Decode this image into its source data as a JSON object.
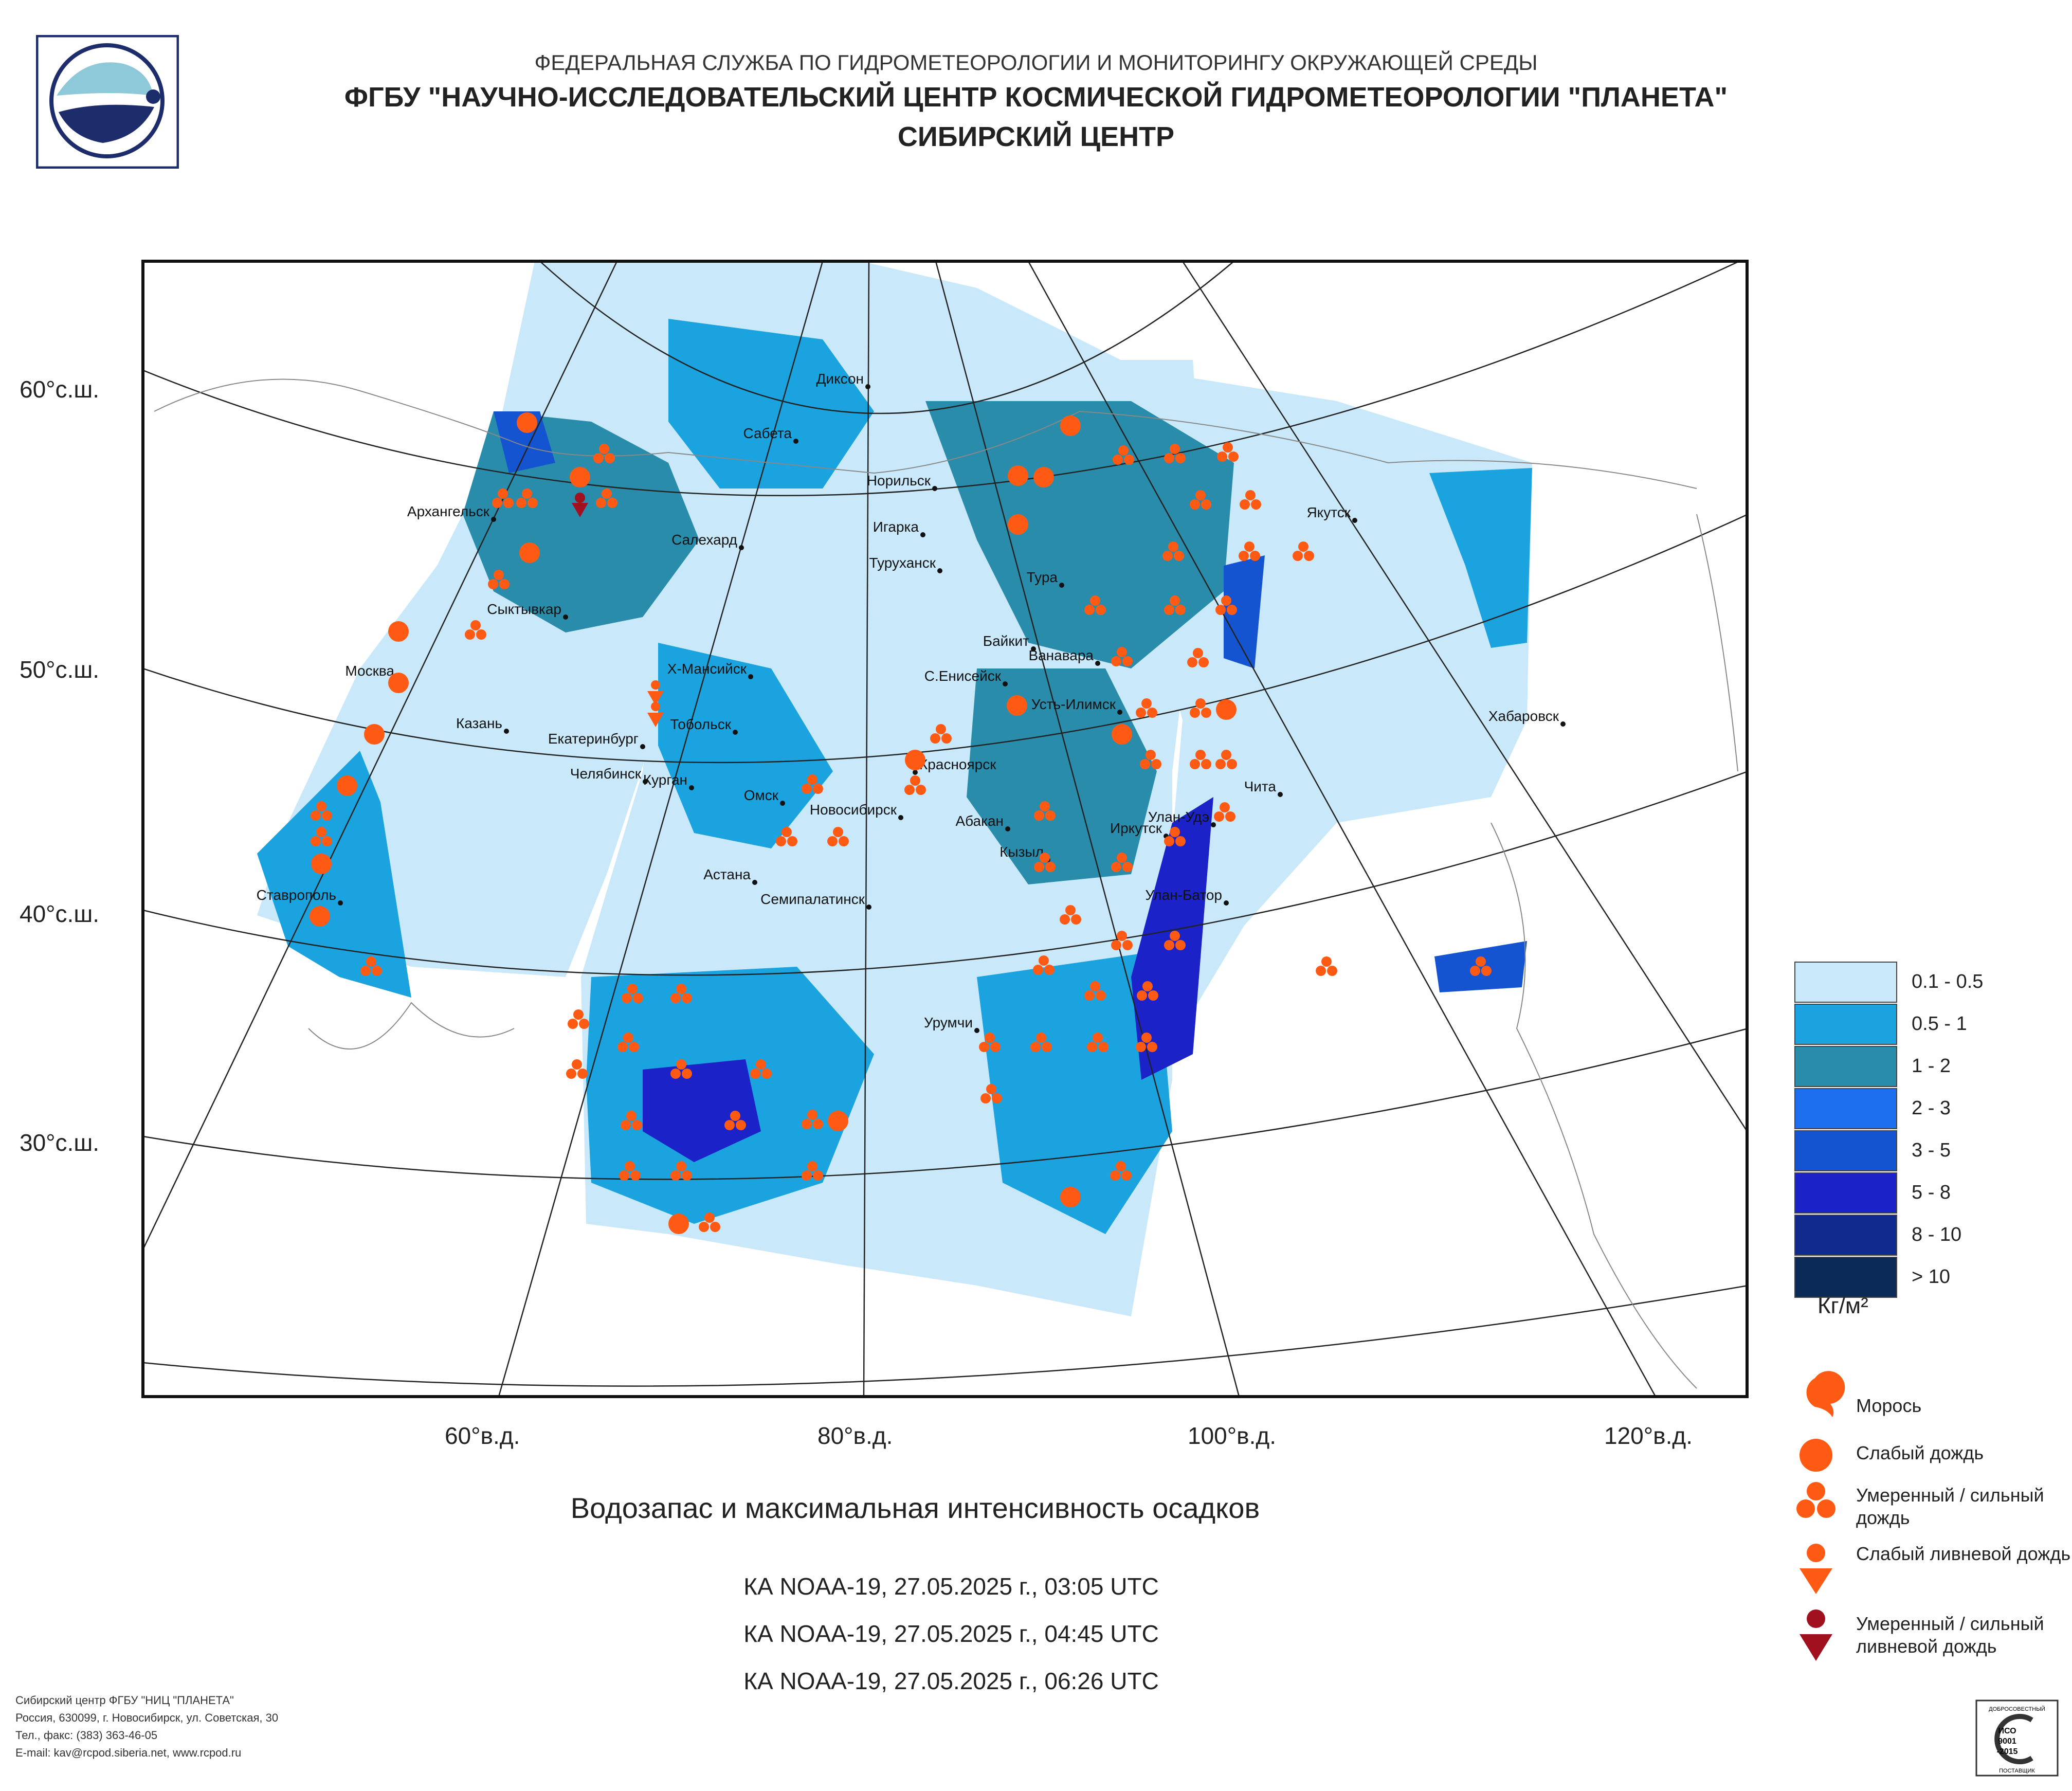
{
  "header": {
    "line1": "ФЕДЕРАЛЬНАЯ СЛУЖБА ПО ГИДРОМЕТЕОРОЛОГИИ И МОНИТОРИНГУ ОКРУЖАЮЩЕЙ СРЕДЫ",
    "line2": "ФГБУ \"НАУЧНО-ИССЛЕДОВАТЕЛЬСКИЙ ЦЕНТР КОСМИЧЕСКОЙ ГИДРОМЕТЕОРОЛОГИИ \"ПЛАНЕТА\"",
    "line3": "СИБИРСКИЙ ЦЕНТР"
  },
  "map": {
    "lat_labels": [
      "60°с.ш.",
      "50°с.ш.",
      "40°с.ш.",
      "30°с.ш."
    ],
    "lon_labels": [
      "60°в.д.",
      "80°в.д.",
      "100°в.д.",
      "120°в.д."
    ],
    "cities": [
      "Диксон",
      "Сабета",
      "Норильск",
      "Игарка",
      "Туруханск",
      "Салехард",
      "Архангельск",
      "Сыктывкар",
      "Москва",
      "Казань",
      "Екатеринбург",
      "Челябинск",
      "Курган",
      "Тобольск",
      "Х-Мансийск",
      "Омск",
      "Новосибирск",
      "Астана",
      "Семипалатинск",
      "Красноярск",
      "Абакан",
      "Кызыл",
      "Иркутск",
      "Улан-Удэ",
      "Улан-Батор",
      "Чита",
      "Якутск",
      "Хабаровск",
      "Тура",
      "Байкит",
      "Ванавара",
      "С.Енисейск",
      "Усть-Илимск",
      "Урумчи",
      "Ставрополь"
    ]
  },
  "caption": "Водозапас и максимальная интенсивность осадков",
  "passes": [
    "КА NOAA-19, 27.05.2025 г., 03:05 UTC",
    "КА NOAA-19, 27.05.2025 г., 04:45 UTC",
    "КА NOAA-19, 27.05.2025 г., 06:26 UTC"
  ],
  "legend": {
    "classes": [
      {
        "label": "0.1 - 0.5",
        "color": "#c9e9fb"
      },
      {
        "label": "0.5 - 1",
        "color": "#1aa3df"
      },
      {
        "label": "1 - 2",
        "color": "#2a8cab"
      },
      {
        "label": "2 - 3",
        "color": "#1d6ff0"
      },
      {
        "label": "3 - 5",
        "color": "#1454d0"
      },
      {
        "label": "5 - 8",
        "color": "#1a22c8"
      },
      {
        "label": "8 - 10",
        "color": "#0f2a8c"
      },
      {
        "label": "> 10",
        "color": "#0b2a55"
      }
    ],
    "unit": "Кг/м²",
    "symbols": [
      {
        "label": "Морось",
        "icon": "drizzle-icon"
      },
      {
        "label": "Слабый дождь",
        "icon": "light-rain-icon"
      },
      {
        "label": "Умеренный / сильный дождь",
        "icon": "moderate-rain-icon"
      },
      {
        "label": "Слабый ливневой дождь",
        "icon": "light-shower-icon"
      },
      {
        "label": "Умеренный / сильный ливневой дождь",
        "icon": "heavy-shower-icon"
      }
    ],
    "symbol_color": "#ff5a14",
    "shower_heavy_color": "#a0101e"
  },
  "footer": {
    "line1": "Сибирский центр ФГБУ \"НИЦ \"ПЛАНЕТА\"",
    "line2": "Россия, 630099, г. Новосибирск, ул. Советская, 30",
    "line3": "Тел., факс: (383) 363-46-05",
    "line4": "E-mail: kav@rcpod.siberia.net, www.rcpod.ru"
  },
  "iso_badge": {
    "top": "ДОБРОСОВЕСТНЫЙ",
    "mid1": "ИСО",
    "mid2": "9001",
    "mid3": "-2015",
    "bottom": "ПОСТАВЩИК"
  }
}
